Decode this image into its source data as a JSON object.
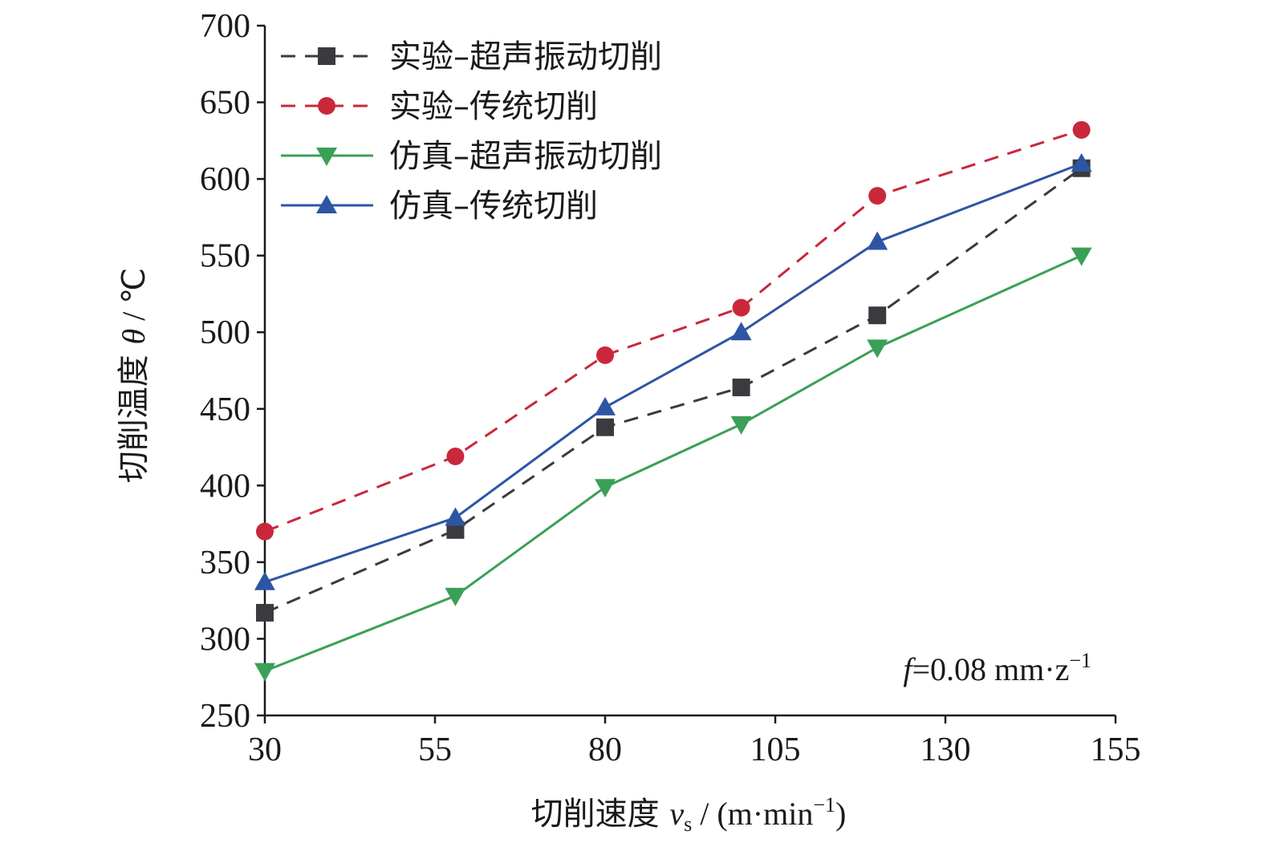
{
  "chart_data": {
    "type": "line",
    "x": [
      30,
      58,
      80,
      100,
      120,
      150
    ],
    "xlim": [
      30,
      155
    ],
    "ylim": [
      250,
      700
    ],
    "xticks": [
      30,
      55,
      80,
      105,
      130,
      155
    ],
    "yticks": [
      250,
      300,
      350,
      400,
      450,
      500,
      550,
      600,
      650,
      700
    ],
    "xlabel": {
      "prefix": "切削速度 ",
      "var": "v",
      "sub": "s",
      "unit": " / (m·min",
      "sup": "−1",
      "close": ")"
    },
    "ylabel": {
      "prefix": "切削温度 ",
      "var": "θ",
      "unit": " / ℃"
    },
    "annotation": {
      "var": "f",
      "text": "=0.08 mm·z",
      "sup": "−1"
    },
    "legend_position": "top-left",
    "grid": false,
    "series": [
      {
        "name": "实验–超声振动切削",
        "color": "#3a3a3f",
        "dash": "dashed",
        "marker": "square",
        "values": [
          317,
          371,
          438,
          464,
          511,
          607
        ]
      },
      {
        "name": "实验–传统切削",
        "color": "#c9283a",
        "dash": "dashed",
        "marker": "circle",
        "values": [
          370,
          419,
          485,
          516,
          589,
          632
        ]
      },
      {
        "name": "仿真–超声振动切削",
        "color": "#3aa057",
        "dash": "solid",
        "marker": "triangle-down",
        "values": [
          279,
          328,
          399,
          440,
          490,
          550
        ]
      },
      {
        "name": "仿真–传统切削",
        "color": "#2e55a3",
        "dash": "solid",
        "marker": "triangle-up",
        "values": [
          337,
          379,
          451,
          500,
          559,
          610
        ]
      }
    ]
  }
}
